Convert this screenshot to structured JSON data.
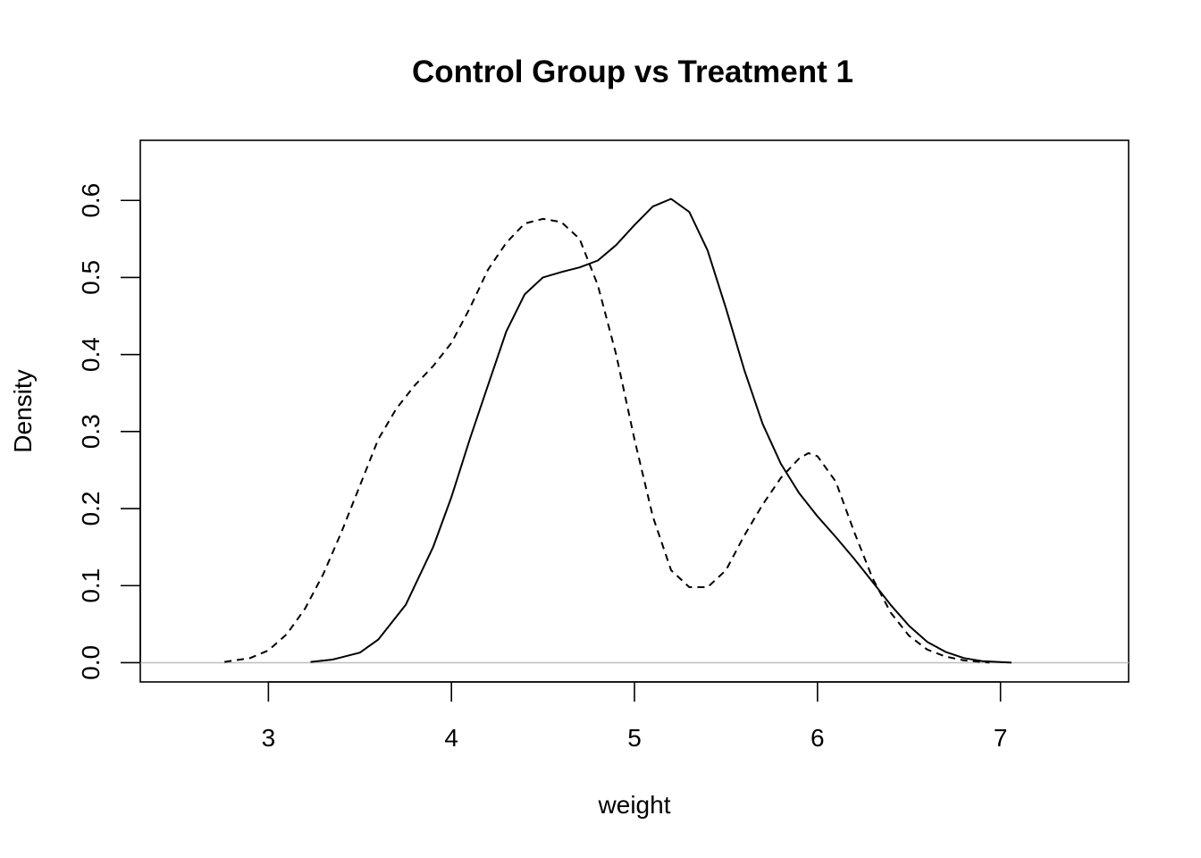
{
  "chart_data": {
    "type": "line",
    "title": "Control Group vs Treatment 1",
    "xlabel": "weight",
    "ylabel": "Density",
    "xlim": [
      2.3,
      7.7
    ],
    "ylim": [
      -0.025,
      0.678
    ],
    "x_ticks": [
      "3",
      "4",
      "5",
      "6",
      "7"
    ],
    "y_ticks": [
      "0.0",
      "0.1",
      "0.2",
      "0.3",
      "0.4",
      "0.5",
      "0.6"
    ],
    "grid": false,
    "legend": "none",
    "baseline_color": "#bebebe",
    "series": [
      {
        "line_style": "solid",
        "color": "#000000",
        "x": [
          3.23,
          3.35,
          3.5,
          3.6,
          3.75,
          3.9,
          4.0,
          4.1,
          4.2,
          4.3,
          4.4,
          4.5,
          4.6,
          4.7,
          4.8,
          4.9,
          5.0,
          5.1,
          5.2,
          5.3,
          5.4,
          5.5,
          5.6,
          5.7,
          5.8,
          5.9,
          6.0,
          6.1,
          6.2,
          6.3,
          6.4,
          6.5,
          6.6,
          6.7,
          6.8,
          6.9,
          7.06
        ],
        "y": [
          0.001,
          0.004,
          0.013,
          0.03,
          0.075,
          0.15,
          0.215,
          0.29,
          0.36,
          0.43,
          0.478,
          0.5,
          0.507,
          0.513,
          0.522,
          0.542,
          0.568,
          0.592,
          0.602,
          0.585,
          0.535,
          0.46,
          0.38,
          0.31,
          0.258,
          0.22,
          0.19,
          0.163,
          0.135,
          0.105,
          0.075,
          0.048,
          0.027,
          0.014,
          0.006,
          0.002,
          0.0
        ]
      },
      {
        "line_style": "dashed",
        "color": "#000000",
        "x": [
          2.76,
          2.9,
          3.0,
          3.1,
          3.2,
          3.3,
          3.4,
          3.5,
          3.6,
          3.7,
          3.8,
          3.9,
          4.0,
          4.1,
          4.2,
          4.3,
          4.4,
          4.5,
          4.6,
          4.7,
          4.8,
          4.9,
          5.0,
          5.1,
          5.2,
          5.3,
          5.4,
          5.5,
          5.6,
          5.7,
          5.8,
          5.9,
          5.95,
          6.0,
          6.1,
          6.2,
          6.3,
          6.4,
          6.5,
          6.6,
          6.7,
          6.8,
          6.94
        ],
        "y": [
          0.001,
          0.006,
          0.016,
          0.037,
          0.07,
          0.115,
          0.17,
          0.23,
          0.29,
          0.33,
          0.36,
          0.385,
          0.415,
          0.46,
          0.51,
          0.545,
          0.57,
          0.576,
          0.572,
          0.55,
          0.49,
          0.4,
          0.29,
          0.19,
          0.12,
          0.098,
          0.098,
          0.12,
          0.165,
          0.205,
          0.24,
          0.265,
          0.272,
          0.268,
          0.235,
          0.17,
          0.11,
          0.065,
          0.035,
          0.017,
          0.008,
          0.003,
          0.0
        ]
      }
    ]
  }
}
